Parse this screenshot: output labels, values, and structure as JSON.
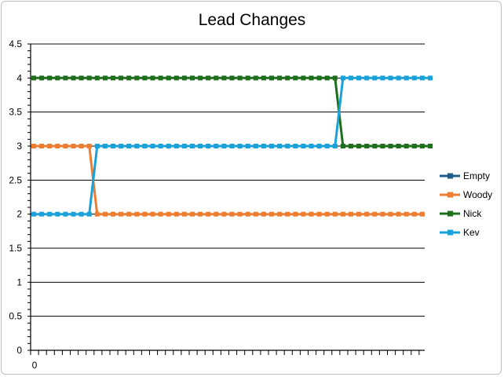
{
  "chart_data": {
    "type": "line",
    "title": "Lead Changes",
    "xlabel": "",
    "ylabel": "",
    "ylim": [
      0,
      4.5
    ],
    "y_ticks": [
      "0",
      "0.5",
      "1",
      "1.5",
      "2",
      "2.5",
      "3",
      "3.5",
      "4",
      "4.5"
    ],
    "x_tick_labels": [
      "0"
    ],
    "grid": "horizontal",
    "legend_position": "right",
    "markers": "square",
    "series": [
      {
        "name": "Empty",
        "color": "#1f5f85",
        "values": []
      },
      {
        "name": "Woody",
        "color": "#ed7d31",
        "values": [
          3,
          3,
          3,
          3,
          3,
          3,
          3,
          3,
          2,
          2,
          2,
          2,
          2,
          2,
          2,
          2,
          2,
          2,
          2,
          2,
          2,
          2,
          2,
          2,
          2,
          2,
          2,
          2,
          2,
          2,
          2,
          2,
          2,
          2,
          2,
          2,
          2,
          2,
          2,
          2,
          2,
          2,
          2,
          2,
          2,
          2,
          2,
          2,
          2,
          2
        ]
      },
      {
        "name": "Nick",
        "color": "#1e6e1e",
        "values": [
          4,
          4,
          4,
          4,
          4,
          4,
          4,
          4,
          4,
          4,
          4,
          4,
          4,
          4,
          4,
          4,
          4,
          4,
          4,
          4,
          4,
          4,
          4,
          4,
          4,
          4,
          4,
          4,
          4,
          4,
          4,
          4,
          4,
          4,
          4,
          4,
          4,
          4,
          4,
          3,
          3,
          3,
          3,
          3,
          3,
          3,
          3,
          3,
          3,
          3,
          3
        ]
      },
      {
        "name": "Kev",
        "color": "#1aa1d9",
        "values": [
          2,
          2,
          2,
          2,
          2,
          2,
          2,
          2,
          3,
          3,
          3,
          3,
          3,
          3,
          3,
          3,
          3,
          3,
          3,
          3,
          3,
          3,
          3,
          3,
          3,
          3,
          3,
          3,
          3,
          3,
          3,
          3,
          3,
          3,
          3,
          3,
          3,
          3,
          3,
          4,
          4,
          4,
          4,
          4,
          4,
          4,
          4,
          4,
          4,
          4,
          4
        ]
      }
    ]
  }
}
